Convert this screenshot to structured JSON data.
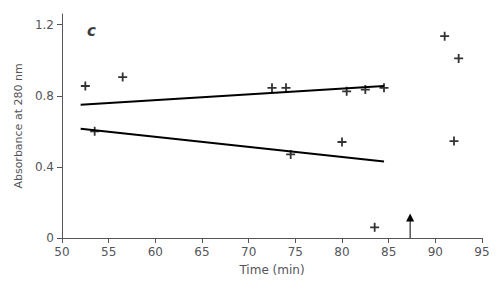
{
  "chart_data": {
    "type": "scatter",
    "title": "c",
    "xlabel": "Time (min)",
    "ylabel": "Absorbance at 280 nm",
    "xlim": [
      50,
      95
    ],
    "ylim": [
      0,
      1.26
    ],
    "xticks": [
      50,
      55,
      60,
      65,
      70,
      75,
      80,
      85,
      90,
      95
    ],
    "yticks": [
      0,
      0.4,
      0.8,
      1.2
    ],
    "grid": false,
    "series": [
      {
        "type": "scatter",
        "marker": "+",
        "color": "#000000",
        "x": [
          52.5,
          56.5,
          72.5,
          74.0,
          80.5,
          82.5,
          84.5,
          91.0,
          92.5,
          53.5,
          74.5,
          80.0,
          83.5,
          92.0
        ],
        "values": [
          0.855,
          0.905,
          0.845,
          0.845,
          0.825,
          0.835,
          0.845,
          1.135,
          1.01,
          0.6,
          0.47,
          0.54,
          0.06,
          0.545
        ]
      },
      {
        "type": "line",
        "line_style": "solid",
        "color": "#000000",
        "x": [
          52.0,
          84.5
        ],
        "values": [
          0.75,
          0.855
        ]
      },
      {
        "type": "line",
        "line_style": "solid",
        "color": "#000000",
        "x": [
          52.0,
          84.5
        ],
        "values": [
          0.615,
          0.43
        ]
      }
    ],
    "arrow": {
      "x": 87.3,
      "y_base": 0.0,
      "y_tip": 0.115,
      "color": "#000000"
    }
  }
}
